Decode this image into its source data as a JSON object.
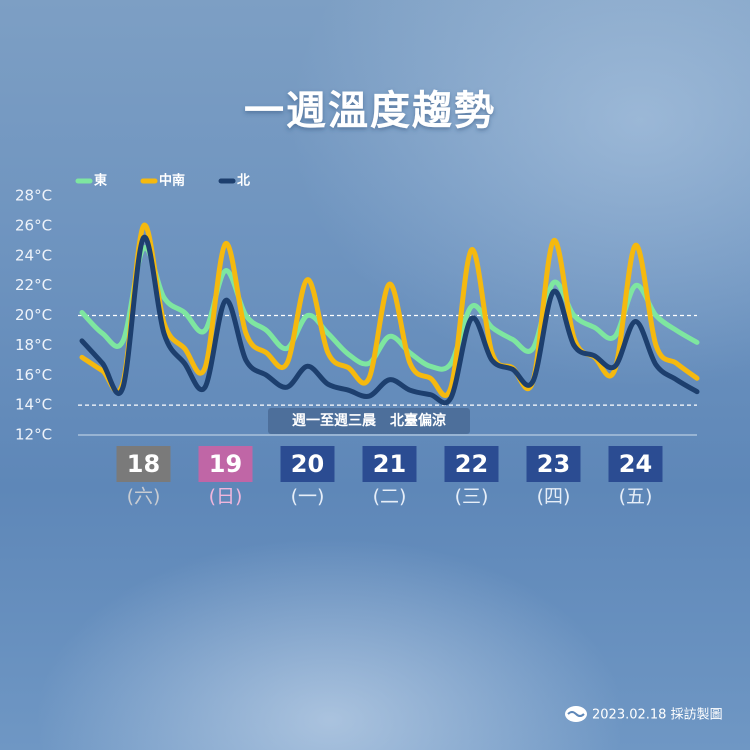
{
  "chart_data": {
    "type": "line",
    "title": "一週溫度趨勢",
    "x": [
      17.25,
      17.5,
      17.75,
      18,
      18.25,
      18.5,
      18.75,
      19,
      19.25,
      19.5,
      19.75,
      20,
      20.25,
      20.5,
      20.75,
      21,
      21.25,
      21.5,
      21.75,
      22,
      22.25,
      22.5,
      22.75,
      23,
      23.25,
      23.5,
      23.75,
      24,
      24.25,
      24.5,
      24.75
    ],
    "xlim": [
      17.25,
      24.75
    ],
    "xticks": [
      18,
      19,
      20,
      21,
      22,
      23,
      24
    ],
    "xtick_weekdays": [
      "(六)",
      "(日)",
      "(一)",
      "(二)",
      "(三)",
      "(四)",
      "(五)"
    ],
    "xtick_box_colors": [
      "#7a7a7a",
      "#c066a6",
      "#2b4c92",
      "#2b4c92",
      "#2b4c92",
      "#2b4c92",
      "#2b4c92"
    ],
    "xtick_weekday_colors": [
      "#c8ccd2",
      "#f0b6dc",
      "#e6eef8",
      "#e6eef8",
      "#e6eef8",
      "#e6eef8",
      "#e6eef8"
    ],
    "ylim": [
      12,
      28
    ],
    "yticks": [
      {
        "value": 12,
        "label": "12°C"
      },
      {
        "value": 14,
        "label": "14°C"
      },
      {
        "value": 16,
        "label": "16°C"
      },
      {
        "value": 18,
        "label": "18°C"
      },
      {
        "value": 20,
        "label": "20°C"
      },
      {
        "value": 22,
        "label": "22°C"
      },
      {
        "value": 24,
        "label": "24°C"
      },
      {
        "value": 26,
        "label": "26°C"
      },
      {
        "value": 28,
        "label": "28°C"
      }
    ],
    "reference_lines": [
      20,
      14
    ],
    "series": [
      {
        "name": "東",
        "color": "#7ee6a0",
        "values": [
          20.2,
          18.8,
          18.3,
          24.5,
          21.2,
          20.2,
          19.0,
          23.0,
          20.0,
          19.0,
          17.8,
          20.0,
          18.8,
          17.4,
          16.8,
          18.6,
          17.5,
          16.6,
          16.8,
          20.6,
          19.2,
          18.4,
          17.8,
          22.2,
          20.0,
          19.2,
          18.6,
          22.0,
          20.0,
          19.0,
          18.2
        ]
      },
      {
        "name": "中南",
        "color": "#f5b90f",
        "values": [
          17.2,
          16.3,
          15.5,
          26.0,
          19.5,
          17.8,
          16.5,
          24.8,
          18.8,
          17.5,
          16.8,
          22.4,
          17.5,
          16.5,
          15.8,
          22.1,
          16.8,
          15.8,
          15.2,
          24.4,
          17.5,
          16.5,
          15.6,
          25.0,
          18.5,
          17.2,
          16.4,
          24.7,
          18.0,
          16.8,
          15.8
        ]
      },
      {
        "name": "北",
        "color": "#1d3f6e",
        "values": [
          18.3,
          16.8,
          15.2,
          25.2,
          18.8,
          16.8,
          15.2,
          21.0,
          17.0,
          16.0,
          15.2,
          16.6,
          15.4,
          15.0,
          14.6,
          15.7,
          15.0,
          14.7,
          14.5,
          19.8,
          17.0,
          16.4,
          15.6,
          21.6,
          18.0,
          17.3,
          16.6,
          19.6,
          16.7,
          15.7,
          14.9
        ]
      }
    ],
    "annotation": "週一至週三晨　北臺偏涼",
    "footer": "2023.02.18 採訪製圖"
  }
}
